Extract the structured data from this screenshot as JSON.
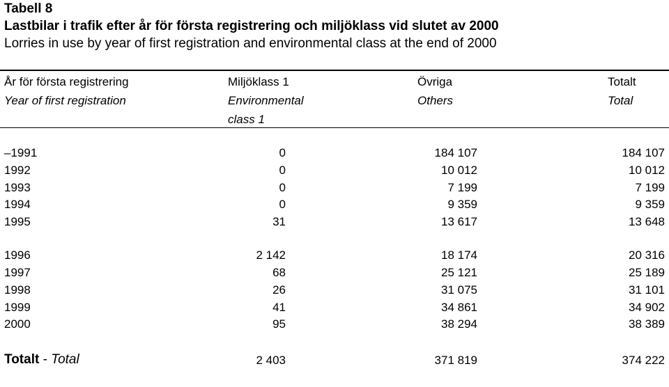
{
  "title": {
    "number": "Tabell 8",
    "swedish": "Lastbilar i trafik efter år för första registrering och miljöklass vid slutet av 2000",
    "english": "Lorries in use by year of first registration and environmental class at the end of 2000"
  },
  "columns": {
    "year_sv": "År för första registrering",
    "year_en": "Year of first registration",
    "env_sv": "Miljöklass 1",
    "env_en_1": "Environmental",
    "env_en_2": "class 1",
    "others_sv": "Övriga",
    "others_en": "Others",
    "total_sv": "Totalt",
    "total_en": "Total"
  },
  "rows": [
    {
      "year": "–1991",
      "env": "0",
      "others": "184 107",
      "total": "184 107"
    },
    {
      "year": "1992",
      "env": "0",
      "others": "10 012",
      "total": "10 012"
    },
    {
      "year": "1993",
      "env": "0",
      "others": "7 199",
      "total": "7 199"
    },
    {
      "year": "1994",
      "env": "0",
      "others": "9 359",
      "total": "9 359"
    },
    {
      "year": "1995",
      "env": "31",
      "others": "13 617",
      "total": "13 648"
    },
    {
      "year": "1996",
      "env": "2 142",
      "others": "18 174",
      "total": "20 316"
    },
    {
      "year": "1997",
      "env": "68",
      "others": "25 121",
      "total": "25 189"
    },
    {
      "year": "1998",
      "env": "26",
      "others": "31 075",
      "total": "31 101"
    },
    {
      "year": "1999",
      "env": "41",
      "others": "34 861",
      "total": "34 902"
    },
    {
      "year": "2000",
      "env": "95",
      "others": "38 294",
      "total": "38 389"
    }
  ],
  "total_row": {
    "label_sv": "Totalt",
    "separator": " - ",
    "label_en": "Total",
    "env": "2 403",
    "others": "371 819",
    "total": "374 222"
  }
}
